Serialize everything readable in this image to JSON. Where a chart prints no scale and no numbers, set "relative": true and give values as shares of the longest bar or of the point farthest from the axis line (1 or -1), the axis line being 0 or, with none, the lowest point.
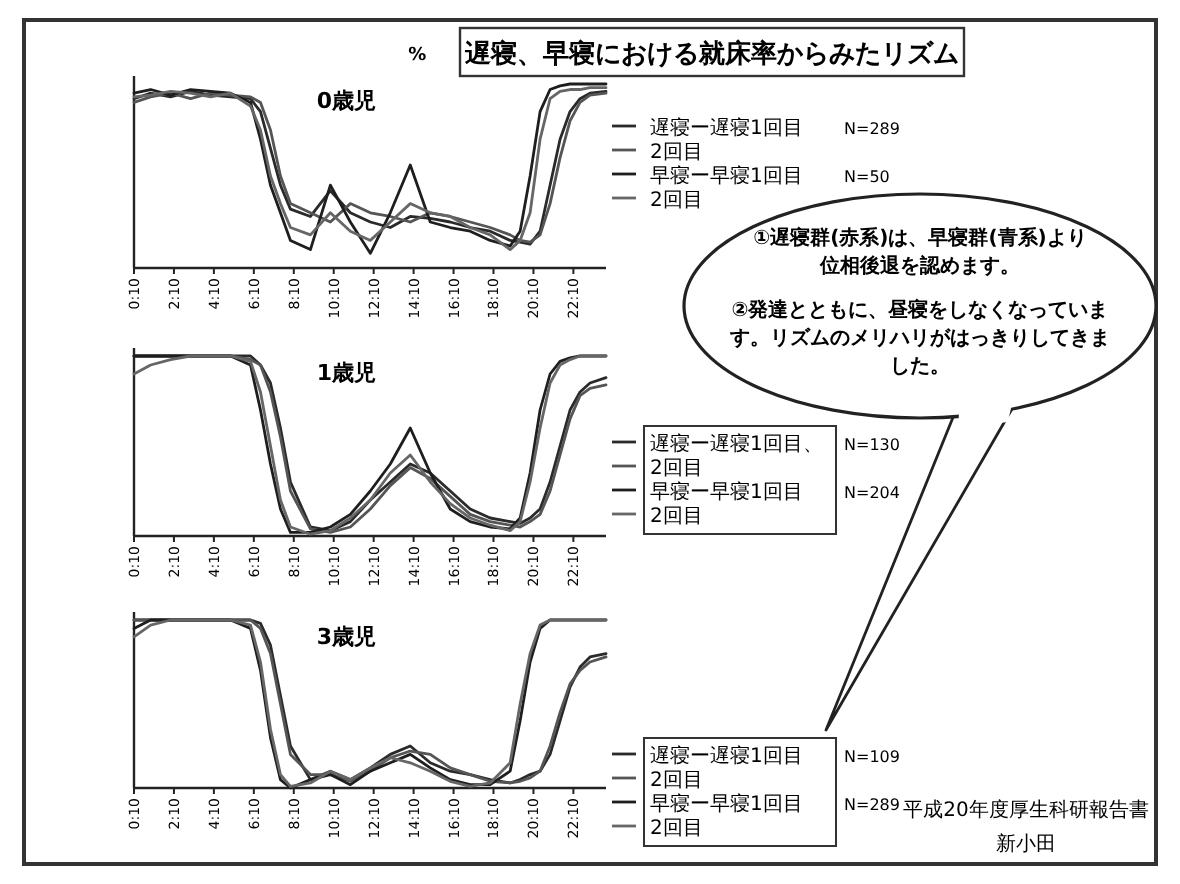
{
  "chart_data": [
    {
      "type": "other",
      "title": "遅寝、早寝における就床率からみたリズム",
      "annotations": [
        "①遅寝群(赤系)は、早寝群(青系)より位相後退を認めます。",
        "②発達とともに、昼寝をしなくなっています。リズムのメリハリがはっきりしてきました。",
        "平成20年度厚生科研報告書",
        "新小田"
      ]
    },
    {
      "type": "line",
      "title": "0歳児",
      "ylabel": "%",
      "relative": true,
      "legend": "right",
      "xlim": [
        0.1667,
        23.8
      ],
      "xticks": [
        {
          "value": 0.1667,
          "label": "0:10"
        },
        {
          "value": 2.1667,
          "label": "2:10"
        },
        {
          "value": 4.1667,
          "label": "4:10"
        },
        {
          "value": 6.1667,
          "label": "6:10"
        },
        {
          "value": 8.1667,
          "label": "8:10"
        },
        {
          "value": 10.1667,
          "label": "10:10"
        },
        {
          "value": 12.1667,
          "label": "12:10"
        },
        {
          "value": 14.1667,
          "label": "14:10"
        },
        {
          "value": 16.1667,
          "label": "16:10"
        },
        {
          "value": 18.1667,
          "label": "18:10"
        },
        {
          "value": 20.1667,
          "label": "20:10"
        },
        {
          "value": 22.1667,
          "label": "22:10"
        }
      ],
      "x": [
        0.1667,
        1,
        2,
        3,
        4,
        5,
        6,
        6.5,
        7,
        7.5,
        8,
        9,
        10,
        11,
        12,
        13,
        14,
        15,
        16,
        17,
        18,
        19,
        19.5,
        20,
        20.5,
        21,
        21.5,
        22,
        22.5,
        23,
        23.8
      ],
      "annotations": [
        "N=289",
        "N=50"
      ],
      "series": [
        {
          "name": "遅寝ー遅寝1回目",
          "color": "#2a2a2a",
          "values": [
            0.92,
            0.95,
            0.93,
            0.96,
            0.94,
            0.93,
            0.92,
            0.85,
            0.65,
            0.45,
            0.32,
            0.28,
            0.42,
            0.3,
            0.25,
            0.22,
            0.28,
            0.27,
            0.25,
            0.22,
            0.2,
            0.15,
            0.14,
            0.13,
            0.2,
            0.45,
            0.7,
            0.85,
            0.92,
            0.95,
            0.96
          ]
        },
        {
          "name": "2回目",
          "color": "#555555",
          "values": [
            0.9,
            0.93,
            0.95,
            0.92,
            0.95,
            0.94,
            0.93,
            0.9,
            0.75,
            0.5,
            0.35,
            0.3,
            0.25,
            0.35,
            0.3,
            0.28,
            0.25,
            0.3,
            0.28,
            0.25,
            0.22,
            0.18,
            0.15,
            0.14,
            0.18,
            0.35,
            0.6,
            0.8,
            0.9,
            0.94,
            0.95
          ]
        },
        {
          "name": "早寝ー早寝1回目",
          "color": "#1e1e1e",
          "values": [
            0.95,
            0.97,
            0.94,
            0.97,
            0.96,
            0.95,
            0.9,
            0.7,
            0.45,
            0.3,
            0.15,
            0.1,
            0.45,
            0.25,
            0.08,
            0.3,
            0.56,
            0.25,
            0.22,
            0.2,
            0.15,
            0.12,
            0.2,
            0.5,
            0.85,
            0.97,
            0.99,
            1,
            1,
            1,
            1
          ]
        },
        {
          "name": "2回目",
          "color": "#666666",
          "values": [
            0.93,
            0.94,
            0.96,
            0.95,
            0.93,
            0.95,
            0.88,
            0.75,
            0.5,
            0.35,
            0.22,
            0.18,
            0.3,
            0.2,
            0.15,
            0.25,
            0.35,
            0.3,
            0.28,
            0.22,
            0.18,
            0.1,
            0.15,
            0.3,
            0.7,
            0.92,
            0.96,
            0.97,
            0.97,
            0.98,
            0.98
          ]
        }
      ]
    },
    {
      "type": "line",
      "title": "1歳児",
      "relative": true,
      "legend": "right",
      "xlim": [
        0.1667,
        23.8
      ],
      "xticks": [
        {
          "value": 0.1667,
          "label": "0:10"
        },
        {
          "value": 2.1667,
          "label": "2:10"
        },
        {
          "value": 4.1667,
          "label": "4:10"
        },
        {
          "value": 6.1667,
          "label": "6:10"
        },
        {
          "value": 8.1667,
          "label": "8:10"
        },
        {
          "value": 10.1667,
          "label": "10:10"
        },
        {
          "value": 12.1667,
          "label": "12:10"
        },
        {
          "value": 14.1667,
          "label": "14:10"
        },
        {
          "value": 16.1667,
          "label": "16:10"
        },
        {
          "value": 18.1667,
          "label": "18:10"
        },
        {
          "value": 20.1667,
          "label": "20:10"
        },
        {
          "value": 22.1667,
          "label": "22:10"
        }
      ],
      "x": [
        0.1667,
        1,
        2,
        3,
        4,
        5,
        6,
        6.5,
        7,
        7.5,
        8,
        9,
        10,
        11,
        12,
        13,
        14,
        15,
        16,
        17,
        18,
        19,
        19.5,
        20,
        20.5,
        21,
        21.5,
        22,
        22.5,
        23,
        23.8
      ],
      "annotations": [
        "N=130",
        "N=204"
      ],
      "series": [
        {
          "name": "遅寝ー遅寝1回目、",
          "color": "#2a2a2a",
          "values": [
            1,
            1,
            1,
            1,
            1,
            1,
            1,
            0.95,
            0.85,
            0.6,
            0.3,
            0.05,
            0.03,
            0.08,
            0.2,
            0.3,
            0.4,
            0.35,
            0.25,
            0.15,
            0.1,
            0.08,
            0.07,
            0.1,
            0.15,
            0.3,
            0.5,
            0.7,
            0.8,
            0.85,
            0.88
          ]
        },
        {
          "name": "2回目",
          "color": "#555555",
          "values": [
            1,
            1,
            1,
            1,
            1,
            1,
            0.98,
            0.95,
            0.8,
            0.55,
            0.25,
            0.04,
            0.02,
            0.05,
            0.15,
            0.28,
            0.38,
            0.32,
            0.22,
            0.12,
            0.08,
            0.06,
            0.05,
            0.08,
            0.12,
            0.25,
            0.45,
            0.65,
            0.78,
            0.82,
            0.84
          ]
        },
        {
          "name": "早寝ー早寝1回目",
          "color": "#1e1e1e",
          "values": [
            1,
            1,
            1,
            1,
            1,
            1,
            0.95,
            0.7,
            0.4,
            0.15,
            0.02,
            0.02,
            0.05,
            0.12,
            0.25,
            0.4,
            0.6,
            0.35,
            0.15,
            0.08,
            0.05,
            0.04,
            0.1,
            0.35,
            0.7,
            0.9,
            0.97,
            0.99,
            1,
            1,
            1
          ]
        },
        {
          "name": "2回目",
          "color": "#666666",
          "values": [
            0.9,
            0.95,
            0.98,
            1,
            1,
            1,
            0.97,
            0.8,
            0.5,
            0.2,
            0.05,
            0.01,
            0.03,
            0.1,
            0.2,
            0.35,
            0.45,
            0.3,
            0.18,
            0.1,
            0.06,
            0.03,
            0.08,
            0.3,
            0.6,
            0.85,
            0.95,
            0.98,
            1,
            1,
            1
          ]
        }
      ]
    },
    {
      "type": "line",
      "title": "3歳児",
      "relative": true,
      "legend": "right",
      "xlim": [
        0.1667,
        23.8
      ],
      "xticks": [
        {
          "value": 0.1667,
          "label": "0:10"
        },
        {
          "value": 2.1667,
          "label": "2:10"
        },
        {
          "value": 4.1667,
          "label": "4:10"
        },
        {
          "value": 6.1667,
          "label": "6:10"
        },
        {
          "value": 8.1667,
          "label": "8:10"
        },
        {
          "value": 10.1667,
          "label": "10:10"
        },
        {
          "value": 12.1667,
          "label": "12:10"
        },
        {
          "value": 14.1667,
          "label": "14:10"
        },
        {
          "value": 16.1667,
          "label": "16:10"
        },
        {
          "value": 18.1667,
          "label": "18:10"
        },
        {
          "value": 20.1667,
          "label": "20:10"
        },
        {
          "value": 22.1667,
          "label": "22:10"
        }
      ],
      "x": [
        0.1667,
        1,
        2,
        3,
        4,
        5,
        6,
        6.5,
        7,
        7.5,
        8,
        9,
        10,
        11,
        12,
        13,
        14,
        15,
        16,
        17,
        18,
        19,
        19.5,
        20,
        20.5,
        21,
        21.5,
        22,
        22.5,
        23,
        23.8
      ],
      "annotations": [
        "N=109",
        "N=289"
      ],
      "series": [
        {
          "name": "遅寝ー遅寝1回目",
          "color": "#2a2a2a",
          "values": [
            1,
            1,
            1,
            1,
            1,
            1,
            1,
            0.98,
            0.85,
            0.55,
            0.25,
            0.05,
            0.1,
            0.05,
            0.12,
            0.2,
            0.25,
            0.15,
            0.1,
            0.08,
            0.05,
            0.03,
            0.05,
            0.08,
            0.1,
            0.2,
            0.4,
            0.6,
            0.72,
            0.78,
            0.8
          ]
        },
        {
          "name": "2回目",
          "color": "#555555",
          "values": [
            1,
            1,
            1,
            1,
            1,
            1,
            1,
            0.95,
            0.8,
            0.5,
            0.2,
            0.08,
            0.08,
            0.04,
            0.1,
            0.18,
            0.22,
            0.2,
            0.12,
            0.08,
            0.04,
            0.03,
            0.04,
            0.06,
            0.1,
            0.25,
            0.45,
            0.62,
            0.7,
            0.75,
            0.78
          ]
        },
        {
          "name": "早寝ー早寝1回目",
          "color": "#1e1e1e",
          "values": [
            0.95,
            1,
            1,
            1,
            1,
            1,
            0.95,
            0.7,
            0.3,
            0.05,
            0,
            0.05,
            0.08,
            0.02,
            0.1,
            0.15,
            0.2,
            0.12,
            0.05,
            0.02,
            0.02,
            0.1,
            0.4,
            0.75,
            0.95,
            1,
            1,
            1,
            1,
            1,
            1
          ]
        },
        {
          "name": "2回目",
          "color": "#666666",
          "values": [
            0.9,
            0.97,
            1,
            1,
            1,
            1,
            0.97,
            0.75,
            0.35,
            0.08,
            0.01,
            0.03,
            0.1,
            0.05,
            0.12,
            0.18,
            0.15,
            0.1,
            0.04,
            0.01,
            0.03,
            0.15,
            0.5,
            0.8,
            0.97,
            1,
            1,
            1,
            1,
            1,
            1
          ]
        }
      ]
    }
  ]
}
